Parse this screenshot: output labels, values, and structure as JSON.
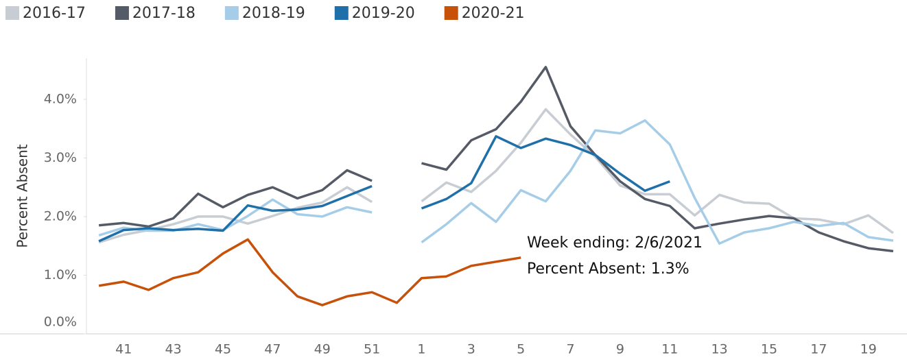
{
  "chart_data": {
    "type": "line",
    "categories": [
      null,
      "41",
      null,
      "43",
      null,
      "45",
      null,
      "47",
      null,
      "49",
      null,
      "51",
      null,
      "1",
      null,
      "3",
      null,
      "5",
      null,
      "7",
      null,
      "9",
      null,
      "11",
      null,
      "13",
      null,
      "15",
      null,
      "17",
      null,
      "19",
      null
    ],
    "y_label": "Percent Absent",
    "ylim": [
      0,
      4.7
    ],
    "yticks": [
      {
        "value": 0,
        "label": "0.0%"
      },
      {
        "value": 1,
        "label": "1.0%"
      },
      {
        "value": 2,
        "label": "2.0%"
      },
      {
        "value": 3,
        "label": "3.0%"
      },
      {
        "value": 4,
        "label": "4.0%"
      }
    ],
    "legend": "top-left",
    "series": [
      {
        "name": "2016-17",
        "color": "#c8cdd4",
        "values": [
          1.56,
          1.69,
          1.77,
          1.87,
          2.0,
          2.0,
          1.88,
          2.01,
          2.15,
          2.24,
          2.5,
          2.25,
          null,
          2.26,
          2.58,
          2.42,
          2.78,
          3.26,
          3.83,
          3.4,
          3.02,
          2.53,
          2.38,
          2.38,
          2.02,
          2.37,
          2.24,
          2.22,
          1.97,
          1.95,
          1.87,
          2.02,
          1.72
        ]
      },
      {
        "name": "2017-18",
        "color": "#555b66",
        "values": [
          1.85,
          1.89,
          1.83,
          1.97,
          2.39,
          2.16,
          2.37,
          2.5,
          2.31,
          2.45,
          2.79,
          2.61,
          null,
          2.91,
          2.8,
          3.3,
          3.49,
          3.96,
          4.55,
          3.54,
          3.05,
          2.6,
          2.3,
          2.18,
          1.8,
          1.88,
          1.95,
          2.01,
          1.97,
          1.73,
          1.58,
          1.46,
          1.41
        ]
      },
      {
        "name": "2018-19",
        "color": "#a6cde8",
        "values": [
          1.68,
          1.81,
          1.76,
          1.76,
          1.87,
          1.77,
          2.01,
          2.29,
          2.04,
          2.0,
          2.16,
          2.07,
          null,
          1.56,
          1.87,
          2.23,
          1.91,
          2.45,
          2.26,
          2.78,
          3.47,
          3.42,
          3.64,
          3.23,
          2.32,
          1.54,
          1.73,
          1.8,
          1.91,
          1.84,
          1.89,
          1.65,
          1.59
        ]
      },
      {
        "name": "2019-20",
        "color": "#1f6fa8",
        "values": [
          1.58,
          1.77,
          1.8,
          1.77,
          1.79,
          1.76,
          2.19,
          2.1,
          2.12,
          2.18,
          2.35,
          2.52,
          null,
          2.14,
          2.3,
          2.57,
          3.37,
          3.17,
          3.33,
          3.22,
          3.05,
          2.73,
          2.44,
          2.6,
          null,
          null,
          null,
          null,
          null,
          null,
          null,
          null,
          null
        ]
      },
      {
        "name": "2020-21",
        "color": "#c8510a",
        "values": [
          0.82,
          0.89,
          0.75,
          0.95,
          1.05,
          1.37,
          1.61,
          1.05,
          0.64,
          0.49,
          0.64,
          0.71,
          0.53,
          0.95,
          0.98,
          1.16,
          1.23,
          1.3,
          null,
          null,
          null,
          null,
          null,
          null,
          null,
          null,
          null,
          null,
          null,
          null,
          null,
          null,
          null
        ]
      }
    ],
    "annotations": [
      "Week ending:  2/6/2021",
      "Percent Absent:  1.3%"
    ]
  }
}
